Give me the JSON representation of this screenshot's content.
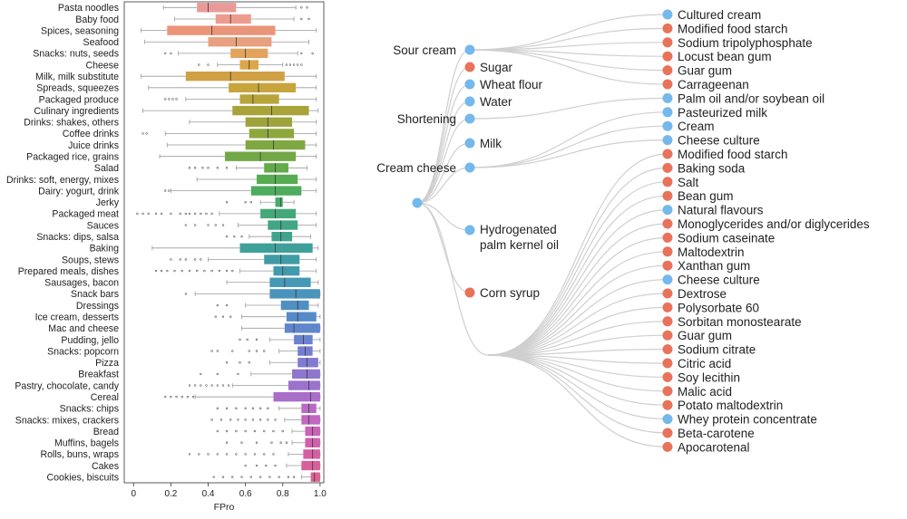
{
  "chart_data": [
    {
      "type": "box",
      "xlabel": "FPro",
      "xlim": [
        -0.05,
        1.02
      ],
      "xticks": [
        "0",
        "0.2",
        "0.4",
        "0.6",
        "0.8",
        "1.0"
      ],
      "xtick_values": [
        0,
        0.2,
        0.4,
        0.6,
        0.8,
        1.0
      ],
      "categories": [
        {
          "label": "Pasta noodles",
          "q1": 0.34,
          "median": 0.4,
          "q3": 0.55,
          "wlo": 0.16,
          "whi": 0.87,
          "color": "#e99a98",
          "outliers": [
            0.9,
            0.93
          ]
        },
        {
          "label": "Baby food",
          "q1": 0.44,
          "median": 0.52,
          "q3": 0.63,
          "wlo": 0.22,
          "whi": 0.86,
          "color": "#ec9c8e",
          "outliers": [
            0.9,
            0.94
          ]
        },
        {
          "label": "Spices, seasoning",
          "q1": 0.18,
          "median": 0.42,
          "q3": 0.76,
          "wlo": 0.04,
          "whi": 0.98,
          "color": "#ea9479",
          "outliers": []
        },
        {
          "label": "Seafood",
          "q1": 0.4,
          "median": 0.55,
          "q3": 0.74,
          "wlo": 0.06,
          "whi": 0.94,
          "color": "#e8a07f",
          "outliers": []
        },
        {
          "label": "Snacks: nuts, seeds",
          "q1": 0.52,
          "median": 0.6,
          "q3": 0.72,
          "wlo": 0.24,
          "whi": 0.88,
          "color": "#e2a35d",
          "outliers": [
            0.17,
            0.2,
            0.9,
            0.96
          ]
        },
        {
          "label": "Cheese",
          "q1": 0.57,
          "median": 0.62,
          "q3": 0.67,
          "wlo": 0.45,
          "whi": 0.8,
          "color": "#dca748",
          "outliers": [
            0.35,
            0.4,
            0.82,
            0.84,
            0.86,
            0.88,
            0.9
          ]
        },
        {
          "label": "Milk, milk substitute",
          "q1": 0.28,
          "median": 0.52,
          "q3": 0.81,
          "wlo": 0.04,
          "whi": 0.98,
          "color": "#d0a045",
          "outliers": []
        },
        {
          "label": "Spreads, squeezes",
          "q1": 0.51,
          "median": 0.67,
          "q3": 0.87,
          "wlo": 0.08,
          "whi": 0.98,
          "color": "#c8a53c",
          "outliers": []
        },
        {
          "label": "Packaged produce",
          "q1": 0.57,
          "median": 0.64,
          "q3": 0.78,
          "wlo": 0.28,
          "whi": 0.98,
          "color": "#b8a43a",
          "outliers": [
            0.17,
            0.19,
            0.21,
            0.23
          ]
        },
        {
          "label": "Culinary ingredients",
          "q1": 0.53,
          "median": 0.74,
          "q3": 0.94,
          "wlo": 0.05,
          "whi": 0.99,
          "color": "#a8a43a",
          "outliers": []
        },
        {
          "label": "Drinks: shakes, others",
          "q1": 0.6,
          "median": 0.72,
          "q3": 0.85,
          "wlo": 0.3,
          "whi": 0.98,
          "color": "#9ea43c",
          "outliers": []
        },
        {
          "label": "Coffee drinks",
          "q1": 0.62,
          "median": 0.72,
          "q3": 0.86,
          "wlo": 0.17,
          "whi": 0.98,
          "color": "#8ea63e",
          "outliers": [
            0.05,
            0.07
          ]
        },
        {
          "label": "Juice drinks",
          "q1": 0.6,
          "median": 0.75,
          "q3": 0.92,
          "wlo": 0.18,
          "whi": 0.98,
          "color": "#80a842",
          "outliers": []
        },
        {
          "label": "Packaged rice, grains",
          "q1": 0.49,
          "median": 0.68,
          "q3": 0.87,
          "wlo": 0.14,
          "whi": 0.98,
          "color": "#72a846",
          "outliers": []
        },
        {
          "label": "Salad",
          "q1": 0.7,
          "median": 0.76,
          "q3": 0.83,
          "wlo": 0.55,
          "whi": 0.93,
          "color": "#62aa4a",
          "outliers": [
            0.3,
            0.33,
            0.37,
            0.4,
            0.45,
            0.5
          ]
        },
        {
          "label": "Drinks: soft, energy, mixes",
          "q1": 0.66,
          "median": 0.76,
          "q3": 0.88,
          "wlo": 0.34,
          "whi": 0.98,
          "color": "#56ac52",
          "outliers": []
        },
        {
          "label": "Dairy: yogurt, drink",
          "q1": 0.63,
          "median": 0.76,
          "q3": 0.9,
          "wlo": 0.2,
          "whi": 0.98,
          "color": "#4eac5e",
          "outliers": [
            0.17,
            0.19
          ]
        },
        {
          "label": "Jerky",
          "q1": 0.76,
          "median": 0.79,
          "q3": 0.8,
          "wlo": 0.68,
          "whi": 0.86,
          "color": "#48ab6a",
          "outliers": [
            0.5,
            0.6,
            0.63
          ]
        },
        {
          "label": "Packaged meat",
          "q1": 0.68,
          "median": 0.76,
          "q3": 0.87,
          "wlo": 0.46,
          "whi": 0.98,
          "color": "#44a878",
          "outliers": [
            0.02,
            0.05,
            0.08,
            0.12,
            0.15,
            0.2,
            0.25,
            0.28,
            0.3,
            0.33,
            0.36,
            0.39,
            0.42
          ]
        },
        {
          "label": "Sauces",
          "q1": 0.72,
          "median": 0.79,
          "q3": 0.88,
          "wlo": 0.56,
          "whi": 0.98,
          "color": "#42a684",
          "outliers": [
            0.28,
            0.33,
            0.4,
            0.44,
            0.48
          ]
        },
        {
          "label": "Snacks: dips, salsa",
          "q1": 0.74,
          "median": 0.79,
          "q3": 0.85,
          "wlo": 0.62,
          "whi": 0.95,
          "color": "#40a38e",
          "outliers": [
            0.5,
            0.54,
            0.58
          ]
        },
        {
          "label": "Baking",
          "q1": 0.57,
          "median": 0.76,
          "q3": 0.96,
          "wlo": 0.1,
          "whi": 0.99,
          "color": "#3fa09a",
          "outliers": []
        },
        {
          "label": "Soups, stews",
          "q1": 0.7,
          "median": 0.79,
          "q3": 0.89,
          "wlo": 0.4,
          "whi": 0.98,
          "color": "#409ca4",
          "outliers": [
            0.2,
            0.25,
            0.28,
            0.33,
            0.36
          ]
        },
        {
          "label": "Prepared meals, dishes",
          "q1": 0.75,
          "median": 0.8,
          "q3": 0.89,
          "wlo": 0.57,
          "whi": 0.98,
          "color": "#429aae",
          "outliers": [
            0.12,
            0.15,
            0.18,
            0.22,
            0.26,
            0.3,
            0.34,
            0.38,
            0.42,
            0.46,
            0.5,
            0.53
          ]
        },
        {
          "label": "Sausages, bacon",
          "q1": 0.73,
          "median": 0.81,
          "q3": 0.95,
          "wlo": 0.5,
          "whi": 0.99,
          "color": "#4598b6"
        },
        {
          "label": "Snack bars",
          "q1": 0.73,
          "median": 0.87,
          "q3": 1.0,
          "wlo": 0.33,
          "whi": 1.0,
          "color": "#4a94bc",
          "outliers": [
            0.28
          ]
        },
        {
          "label": "Dressings",
          "q1": 0.79,
          "median": 0.88,
          "q3": 0.94,
          "wlo": 0.6,
          "whi": 0.99,
          "color": "#508fc2",
          "outliers": [
            0.45,
            0.5
          ]
        },
        {
          "label": "Ice cream, desserts",
          "q1": 0.82,
          "median": 0.88,
          "q3": 0.98,
          "wlo": 0.58,
          "whi": 1.0,
          "color": "#578ac8",
          "outliers": [
            0.44,
            0.48,
            0.52
          ]
        },
        {
          "label": "Mac and cheese",
          "q1": 0.81,
          "median": 0.86,
          "q3": 1.0,
          "wlo": 0.58,
          "whi": 1.0,
          "color": "#6086cc"
        },
        {
          "label": "Pudding, jello",
          "q1": 0.86,
          "median": 0.91,
          "q3": 0.96,
          "wlo": 0.73,
          "whi": 1.0,
          "color": "#6a82cf",
          "outliers": [
            0.57,
            0.61,
            0.66
          ]
        },
        {
          "label": "Snacks: popcorn",
          "q1": 0.88,
          "median": 0.92,
          "q3": 0.96,
          "wlo": 0.78,
          "whi": 1.0,
          "color": "#747ed0",
          "outliers": [
            0.42,
            0.45,
            0.53,
            0.62,
            0.66,
            0.7
          ]
        },
        {
          "label": "Pizza",
          "q1": 0.88,
          "median": 0.93,
          "q3": 0.99,
          "wlo": 0.73,
          "whi": 1.0,
          "color": "#817ad0",
          "outliers": [
            0.5,
            0.57,
            0.62
          ]
        },
        {
          "label": "Breakfast",
          "q1": 0.85,
          "median": 0.93,
          "q3": 1.0,
          "wlo": 0.63,
          "whi": 1.0,
          "color": "#8e76ce",
          "outliers": [
            0.36,
            0.45,
            0.56
          ]
        },
        {
          "label": "Pastry, chocolate, candy",
          "q1": 0.83,
          "median": 0.94,
          "q3": 1.0,
          "wlo": 0.53,
          "whi": 1.0,
          "color": "#9c72cc",
          "outliers": [
            0.3,
            0.33,
            0.36,
            0.39,
            0.42,
            0.45,
            0.48,
            0.51
          ]
        },
        {
          "label": "Cereal",
          "q1": 0.75,
          "median": 0.95,
          "q3": 1.0,
          "wlo": 0.33,
          "whi": 1.0,
          "color": "#aa6ec8",
          "outliers": [
            0.17,
            0.2,
            0.23,
            0.26,
            0.29,
            0.32
          ]
        },
        {
          "label": "Snacks: chips",
          "q1": 0.9,
          "median": 0.94,
          "q3": 0.98,
          "wlo": 0.78,
          "whi": 1.0,
          "color": "#b86ac4",
          "outliers": [
            0.45,
            0.5,
            0.55,
            0.6,
            0.64,
            0.68,
            0.72
          ]
        },
        {
          "label": "Snacks: mixes, crackers",
          "q1": 0.9,
          "median": 0.94,
          "q3": 1.0,
          "wlo": 0.81,
          "whi": 1.0,
          "color": "#c266be",
          "outliers": [
            0.42,
            0.47,
            0.52,
            0.56,
            0.6,
            0.64,
            0.68,
            0.72,
            0.76
          ]
        },
        {
          "label": "Bread",
          "q1": 0.92,
          "median": 0.96,
          "q3": 1.0,
          "wlo": 0.85,
          "whi": 1.0,
          "color": "#ca62b6",
          "outliers": [
            0.45,
            0.5,
            0.55,
            0.6,
            0.65,
            0.7,
            0.75,
            0.8
          ]
        },
        {
          "label": "Muffins, bagels",
          "q1": 0.92,
          "median": 0.96,
          "q3": 1.0,
          "wlo": 0.85,
          "whi": 1.0,
          "color": "#d060ac",
          "outliers": [
            0.5,
            0.58,
            0.66,
            0.74,
            0.79,
            0.82
          ]
        },
        {
          "label": "Rolls, buns, wraps",
          "q1": 0.91,
          "median": 0.96,
          "q3": 1.0,
          "wlo": 0.83,
          "whi": 1.0,
          "color": "#d45fa4",
          "outliers": [
            0.3,
            0.35,
            0.4,
            0.45,
            0.5,
            0.55,
            0.6,
            0.65,
            0.7,
            0.75
          ]
        },
        {
          "label": "Cakes",
          "q1": 0.9,
          "median": 0.96,
          "q3": 1.0,
          "wlo": 0.82,
          "whi": 1.0,
          "color": "#d7609c",
          "outliers": [
            0.6,
            0.66,
            0.71,
            0.76
          ]
        },
        {
          "label": "Cookies, biscuits",
          "q1": 0.95,
          "median": 0.97,
          "q3": 1.0,
          "wlo": 0.9,
          "whi": 1.0,
          "color": "#da6294",
          "outliers": [
            0.43,
            0.48,
            0.53,
            0.58,
            0.63,
            0.68,
            0.73,
            0.78,
            0.83,
            0.86
          ]
        }
      ]
    },
    {
      "type": "tree",
      "legend": {
        "orange": "#e8735a",
        "blue": "#74b8ec"
      },
      "root": {},
      "level1": [
        {
          "id": "sour",
          "label": "Sour cream",
          "color": "blue",
          "label_side": "left",
          "children": [
            "cultured",
            "mfs1",
            "stpp",
            "locust",
            "guar1",
            "carrag"
          ]
        },
        {
          "id": "sugar",
          "label": "Sugar",
          "color": "orange",
          "label_side": "right",
          "children": []
        },
        {
          "id": "wheat",
          "label": "Wheat flour",
          "color": "blue",
          "label_side": "right",
          "children": []
        },
        {
          "id": "water",
          "label": "Water",
          "color": "blue",
          "label_side": "right",
          "children": []
        },
        {
          "id": "short",
          "label": "Shortening",
          "color": "blue",
          "label_side": "left",
          "children": [
            "palm"
          ]
        },
        {
          "id": "milk",
          "label": "Milk",
          "color": "blue",
          "label_side": "right",
          "children": []
        },
        {
          "id": "cheese",
          "label": "Cream cheese",
          "color": "blue",
          "label_side": "left",
          "children": [
            "past",
            "cream",
            "cc1"
          ]
        },
        {
          "id": "hydro",
          "label": "Hydrogenated palm kernel oil",
          "label_lines": [
            "Hydrogenated",
            "palm kernel oil"
          ],
          "color": "blue",
          "label_side": "right",
          "children": []
        },
        {
          "id": "corn",
          "label": "Corn syrup",
          "color": "orange",
          "label_side": "right",
          "children": []
        },
        {
          "id": "hub",
          "label": "",
          "color": "none",
          "label_side": "none",
          "children": [
            "mfs2",
            "soda",
            "salt",
            "bean",
            "nat",
            "mono",
            "caseinate",
            "malto",
            "xanthan",
            "cc2",
            "dextrose",
            "poly",
            "sorbitan",
            "guar2",
            "citrate",
            "citric",
            "soy",
            "malic",
            "potato",
            "whey",
            "beta",
            "apo"
          ]
        }
      ],
      "leaves": [
        {
          "id": "cultured",
          "label": "Cultured cream",
          "color": "blue"
        },
        {
          "id": "mfs1",
          "label": "Modified food starch",
          "color": "orange"
        },
        {
          "id": "stpp",
          "label": "Sodium tripolyphosphate",
          "color": "orange"
        },
        {
          "id": "locust",
          "label": "Locust bean gum",
          "color": "orange"
        },
        {
          "id": "guar1",
          "label": "Guar gum",
          "color": "orange"
        },
        {
          "id": "carrag",
          "label": "Carrageenan",
          "color": "orange"
        },
        {
          "id": "palm",
          "label": "Palm oil and/or soybean oil",
          "color": "blue"
        },
        {
          "id": "past",
          "label": "Pasteurized milk",
          "color": "blue"
        },
        {
          "id": "cream",
          "label": "Cream",
          "color": "blue"
        },
        {
          "id": "cc1",
          "label": "Cheese culture",
          "color": "blue"
        },
        {
          "id": "mfs2",
          "label": "Modified food starch",
          "color": "orange"
        },
        {
          "id": "soda",
          "label": "Baking soda",
          "color": "orange"
        },
        {
          "id": "salt",
          "label": "Salt",
          "color": "orange"
        },
        {
          "id": "bean",
          "label": "Bean gum",
          "color": "orange"
        },
        {
          "id": "nat",
          "label": "Natural flavours",
          "color": "blue"
        },
        {
          "id": "mono",
          "label": "Monoglycerides and/or diglycerides",
          "color": "orange"
        },
        {
          "id": "caseinate",
          "label": "Sodium caseinate",
          "color": "orange"
        },
        {
          "id": "malto",
          "label": "Maltodextrin",
          "color": "orange"
        },
        {
          "id": "xanthan",
          "label": "Xanthan gum",
          "color": "orange"
        },
        {
          "id": "cc2",
          "label": "Cheese culture",
          "color": "blue"
        },
        {
          "id": "dextrose",
          "label": "Dextrose",
          "color": "orange"
        },
        {
          "id": "poly",
          "label": "Polysorbate 60",
          "color": "orange"
        },
        {
          "id": "sorbitan",
          "label": "Sorbitan monostearate",
          "color": "orange"
        },
        {
          "id": "guar2",
          "label": "Guar gum",
          "color": "orange"
        },
        {
          "id": "citrate",
          "label": "Sodium citrate",
          "color": "orange"
        },
        {
          "id": "citric",
          "label": "Citric acid",
          "color": "orange"
        },
        {
          "id": "soy",
          "label": "Soy lecithin",
          "color": "orange"
        },
        {
          "id": "malic",
          "label": "Malic acid",
          "color": "orange"
        },
        {
          "id": "potato",
          "label": "Potato maltodextrin",
          "color": "orange"
        },
        {
          "id": "whey",
          "label": "Whey protein concentrate",
          "color": "blue"
        },
        {
          "id": "beta",
          "label": "Beta-carotene",
          "color": "orange"
        },
        {
          "id": "apo",
          "label": "Apocarotenal",
          "color": "orange"
        }
      ]
    }
  ]
}
